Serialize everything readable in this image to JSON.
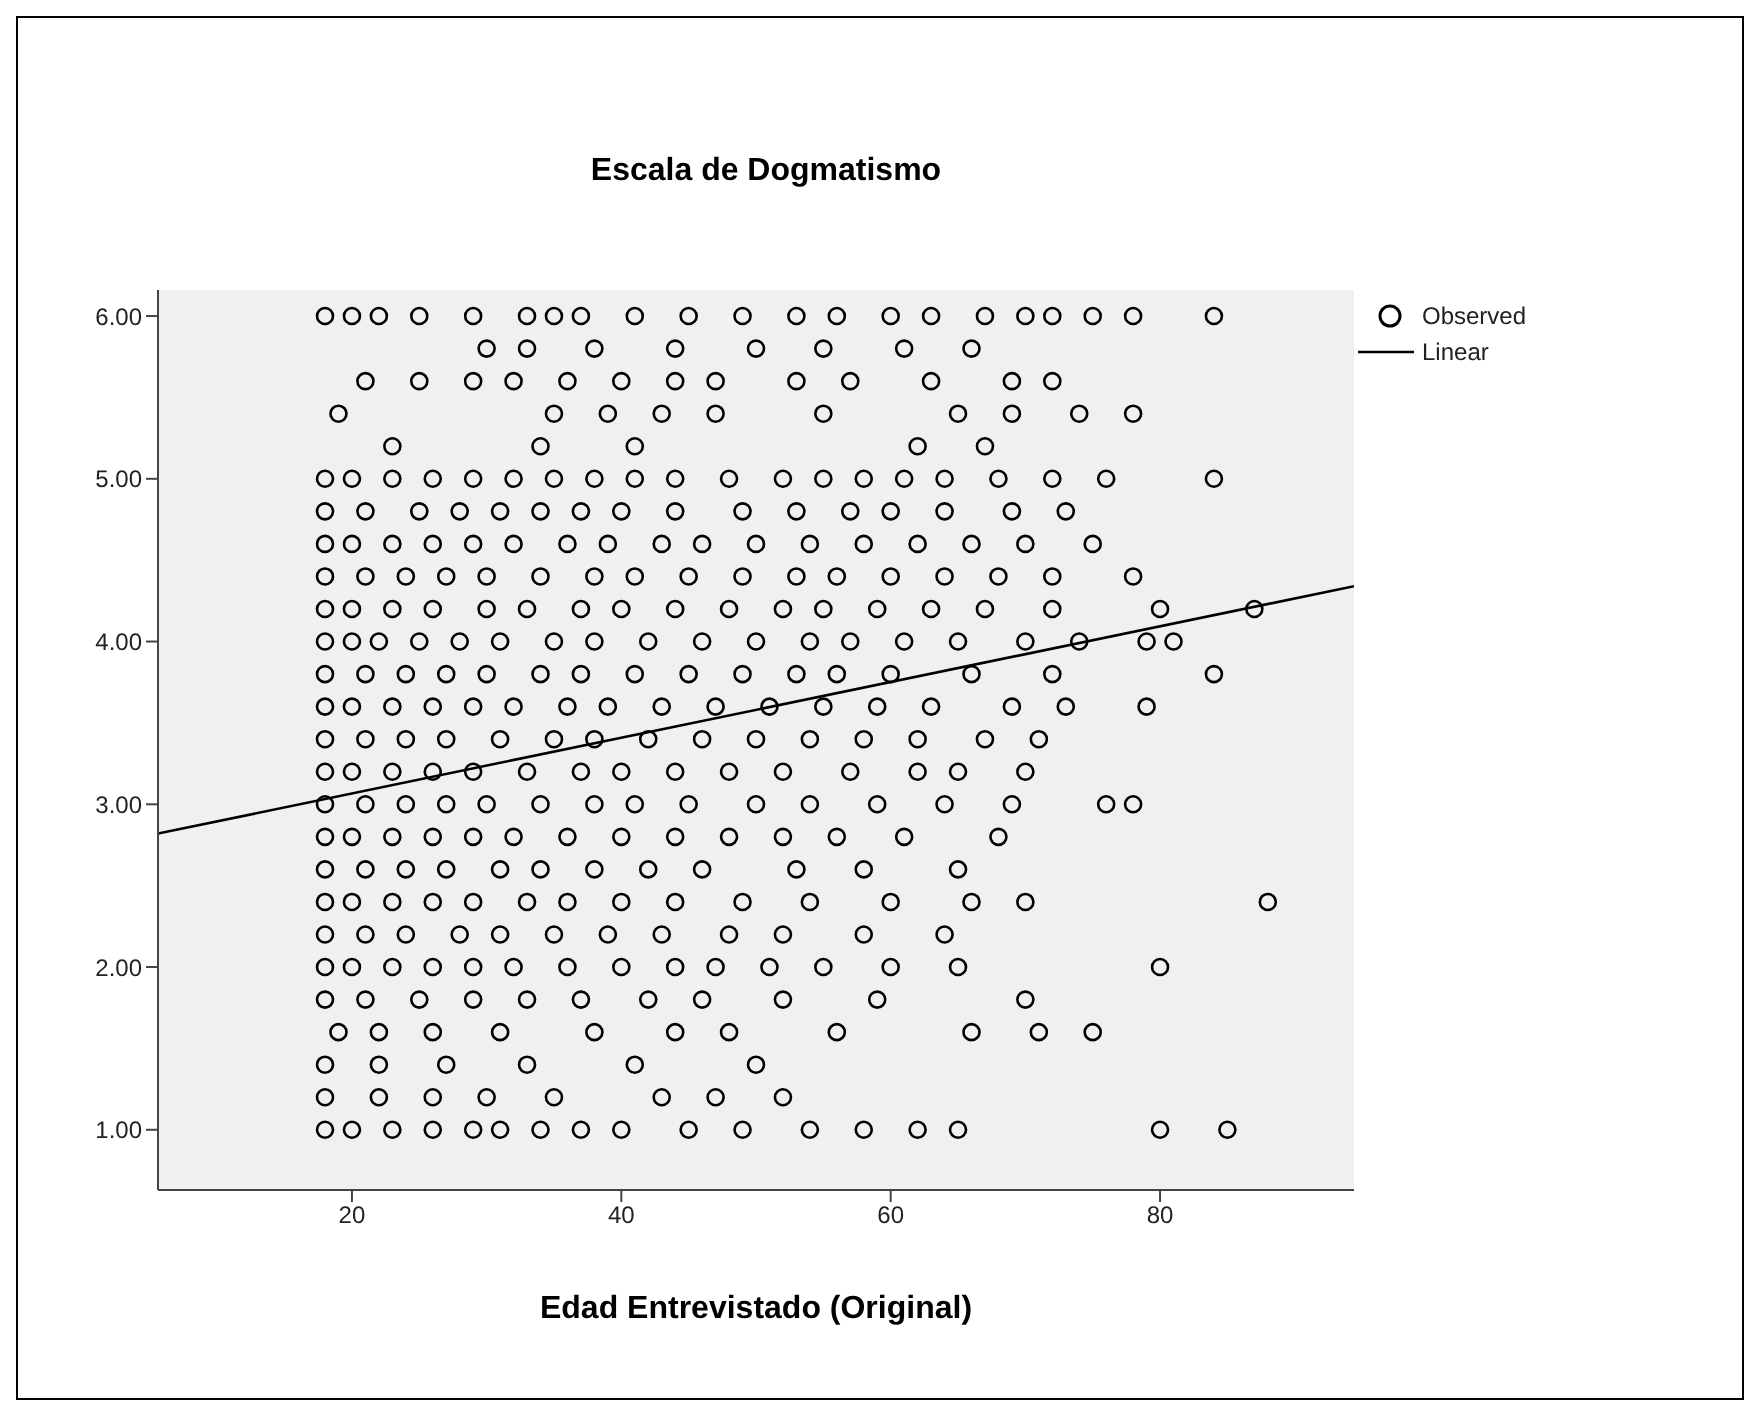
{
  "chart_data": {
    "type": "scatter",
    "title": "Escala de Dogmatismo",
    "xlabel": "Edad Entrevistado (Original)",
    "xlim": [
      5.6,
      94.4
    ],
    "xticks": [
      20,
      40,
      60,
      80
    ],
    "ylim": [
      0.63,
      6.16
    ],
    "yticks": [
      {
        "value": 1,
        "label": "1.00"
      },
      {
        "value": 2,
        "label": "2.00"
      },
      {
        "value": 3,
        "label": "3.00"
      },
      {
        "value": 4,
        "label": "4.00"
      },
      {
        "value": 5,
        "label": "5.00"
      },
      {
        "value": 6,
        "label": "6.00"
      }
    ],
    "grid": false,
    "legend": "top right",
    "series": [
      {
        "name": "Observed",
        "marker": "circle",
        "color": "#000000",
        "x": [
          18,
          20,
          22,
          25,
          29,
          33,
          35,
          37,
          41,
          45,
          49,
          53,
          56,
          60,
          63,
          67,
          70,
          72,
          75,
          78,
          84,
          30,
          33,
          38,
          44,
          50,
          55,
          61,
          66,
          21,
          25,
          29,
          32,
          36,
          40,
          44,
          47,
          53,
          57,
          63,
          69,
          72,
          19,
          35,
          39,
          43,
          47,
          55,
          65,
          69,
          74,
          78,
          23,
          34,
          41,
          62,
          67,
          18,
          20,
          23,
          26,
          29,
          32,
          35,
          38,
          41,
          44,
          48,
          52,
          55,
          58,
          61,
          64,
          68,
          72,
          76,
          84,
          18,
          21,
          25,
          28,
          31,
          34,
          37,
          40,
          44,
          49,
          53,
          57,
          60,
          64,
          69,
          73,
          18,
          20,
          23,
          26,
          29,
          32,
          36,
          39,
          43,
          46,
          50,
          54,
          58,
          62,
          66,
          70,
          75,
          18,
          21,
          24,
          27,
          30,
          34,
          38,
          41,
          45,
          49,
          53,
          56,
          60,
          64,
          68,
          72,
          78,
          18,
          20,
          23,
          26,
          30,
          33,
          37,
          40,
          44,
          48,
          52,
          55,
          59,
          63,
          67,
          72,
          80,
          87,
          18,
          20,
          22,
          25,
          28,
          31,
          35,
          38,
          42,
          46,
          50,
          54,
          57,
          61,
          65,
          70,
          74,
          79,
          81,
          18,
          21,
          24,
          27,
          30,
          34,
          37,
          41,
          45,
          49,
          53,
          56,
          60,
          66,
          72,
          84,
          18,
          20,
          23,
          26,
          29,
          32,
          36,
          39,
          43,
          47,
          51,
          55,
          59,
          63,
          69,
          73,
          79,
          18,
          21,
          24,
          27,
          31,
          35,
          38,
          42,
          46,
          50,
          54,
          58,
          62,
          67,
          71,
          18,
          20,
          23,
          26,
          29,
          33,
          37,
          40,
          44,
          48,
          52,
          57,
          62,
          65,
          70,
          18,
          21,
          24,
          27,
          30,
          34,
          38,
          41,
          45,
          50,
          54,
          59,
          64,
          69,
          76,
          78,
          18,
          20,
          23,
          26,
          29,
          32,
          36,
          40,
          44,
          48,
          52,
          56,
          61,
          68,
          18,
          21,
          24,
          27,
          31,
          34,
          38,
          42,
          46,
          53,
          58,
          65,
          18,
          20,
          23,
          26,
          29,
          33,
          36,
          40,
          44,
          49,
          54,
          60,
          66,
          70,
          88,
          18,
          21,
          24,
          28,
          31,
          35,
          39,
          43,
          48,
          52,
          58,
          64,
          18,
          20,
          23,
          26,
          29,
          32,
          36,
          40,
          44,
          47,
          51,
          55,
          60,
          65,
          80,
          18,
          21,
          25,
          29,
          33,
          37,
          42,
          46,
          52,
          59,
          70,
          19,
          22,
          26,
          31,
          38,
          44,
          48,
          56,
          66,
          71,
          75,
          18,
          22,
          27,
          33,
          41,
          50,
          18,
          22,
          26,
          30,
          35,
          43,
          47,
          52,
          18,
          20,
          23,
          26,
          29,
          31,
          34,
          37,
          40,
          45,
          49,
          54,
          58,
          62,
          65,
          80,
          85
        ],
        "values": [
          6,
          6,
          6,
          6,
          6,
          6,
          6,
          6,
          6,
          6,
          6,
          6,
          6,
          6,
          6,
          6,
          6,
          6,
          6,
          6,
          6,
          5.8,
          5.8,
          5.8,
          5.8,
          5.8,
          5.8,
          5.8,
          5.8,
          5.6,
          5.6,
          5.6,
          5.6,
          5.6,
          5.6,
          5.6,
          5.6,
          5.6,
          5.6,
          5.6,
          5.6,
          5.6,
          5.4,
          5.4,
          5.4,
          5.4,
          5.4,
          5.4,
          5.4,
          5.4,
          5.4,
          5.4,
          5.2,
          5.2,
          5.2,
          5.2,
          5.2,
          5,
          5,
          5,
          5,
          5,
          5,
          5,
          5,
          5,
          5,
          5,
          5,
          5,
          5,
          5,
          5,
          5,
          5,
          5,
          5,
          4.8,
          4.8,
          4.8,
          4.8,
          4.8,
          4.8,
          4.8,
          4.8,
          4.8,
          4.8,
          4.8,
          4.8,
          4.8,
          4.8,
          4.8,
          4.8,
          4.6,
          4.6,
          4.6,
          4.6,
          4.6,
          4.6,
          4.6,
          4.6,
          4.6,
          4.6,
          4.6,
          4.6,
          4.6,
          4.6,
          4.6,
          4.6,
          4.6,
          4.4,
          4.4,
          4.4,
          4.4,
          4.4,
          4.4,
          4.4,
          4.4,
          4.4,
          4.4,
          4.4,
          4.4,
          4.4,
          4.4,
          4.4,
          4.4,
          4.4,
          4.2,
          4.2,
          4.2,
          4.2,
          4.2,
          4.2,
          4.2,
          4.2,
          4.2,
          4.2,
          4.2,
          4.2,
          4.2,
          4.2,
          4.2,
          4.2,
          4.2,
          4.2,
          4,
          4,
          4,
          4,
          4,
          4,
          4,
          4,
          4,
          4,
          4,
          4,
          4,
          4,
          4,
          4,
          4,
          4,
          4,
          3.8,
          3.8,
          3.8,
          3.8,
          3.8,
          3.8,
          3.8,
          3.8,
          3.8,
          3.8,
          3.8,
          3.8,
          3.8,
          3.8,
          3.8,
          3.8,
          3.6,
          3.6,
          3.6,
          3.6,
          3.6,
          3.6,
          3.6,
          3.6,
          3.6,
          3.6,
          3.6,
          3.6,
          3.6,
          3.6,
          3.6,
          3.6,
          3.6,
          3.4,
          3.4,
          3.4,
          3.4,
          3.4,
          3.4,
          3.4,
          3.4,
          3.4,
          3.4,
          3.4,
          3.4,
          3.4,
          3.4,
          3.4,
          3.2,
          3.2,
          3.2,
          3.2,
          3.2,
          3.2,
          3.2,
          3.2,
          3.2,
          3.2,
          3.2,
          3.2,
          3.2,
          3.2,
          3.2,
          3,
          3,
          3,
          3,
          3,
          3,
          3,
          3,
          3,
          3,
          3,
          3,
          3,
          3,
          3,
          3,
          2.8,
          2.8,
          2.8,
          2.8,
          2.8,
          2.8,
          2.8,
          2.8,
          2.8,
          2.8,
          2.8,
          2.8,
          2.8,
          2.8,
          2.6,
          2.6,
          2.6,
          2.6,
          2.6,
          2.6,
          2.6,
          2.6,
          2.6,
          2.6,
          2.6,
          2.6,
          2.4,
          2.4,
          2.4,
          2.4,
          2.4,
          2.4,
          2.4,
          2.4,
          2.4,
          2.4,
          2.4,
          2.4,
          2.4,
          2.4,
          2.4,
          2.2,
          2.2,
          2.2,
          2.2,
          2.2,
          2.2,
          2.2,
          2.2,
          2.2,
          2.2,
          2.2,
          2.2,
          2,
          2,
          2,
          2,
          2,
          2,
          2,
          2,
          2,
          2,
          2,
          2,
          2,
          2,
          2,
          1.8,
          1.8,
          1.8,
          1.8,
          1.8,
          1.8,
          1.8,
          1.8,
          1.8,
          1.8,
          1.8,
          1.6,
          1.6,
          1.6,
          1.6,
          1.6,
          1.6,
          1.6,
          1.6,
          1.6,
          1.6,
          1.6,
          1.4,
          1.4,
          1.4,
          1.4,
          1.4,
          1.4,
          1.2,
          1.2,
          1.2,
          1.2,
          1.2,
          1.2,
          1.2,
          1.2,
          1,
          1,
          1,
          1,
          1,
          1,
          1,
          1,
          1,
          1,
          1,
          1,
          1,
          1,
          1,
          1,
          1
        ]
      },
      {
        "name": "Linear",
        "type": "line",
        "color": "#000000",
        "x": [
          5.6,
          94.4
        ],
        "values": [
          2.82,
          4.34
        ]
      }
    ]
  }
}
